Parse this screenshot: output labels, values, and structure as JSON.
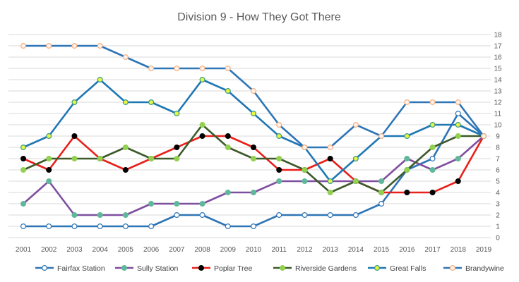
{
  "chart_data": {
    "type": "line",
    "title": "Division 9 - How They Got There",
    "xlabel": "",
    "ylabel": "",
    "x": [
      "2001",
      "2002",
      "2003",
      "2004",
      "2005",
      "2006",
      "2007",
      "2008",
      "2009",
      "2010",
      "2011",
      "2012",
      "2013",
      "2014",
      "2015",
      "2016",
      "2017",
      "2018",
      "2019"
    ],
    "ylim": [
      0,
      18
    ],
    "y_ticks": [
      "0",
      "1",
      "2",
      "3",
      "4",
      "5",
      "6",
      "7",
      "8",
      "9",
      "10",
      "11",
      "12",
      "13",
      "14",
      "15",
      "16",
      "17",
      "18"
    ],
    "y_axis_side": "right",
    "grid": true,
    "legend_position": "bottom",
    "series": [
      {
        "name": "Fairfax Station",
        "line_color": "#2e75b6",
        "marker_fill": "#ffffff",
        "marker_stroke": "#2e75b6",
        "values": [
          1,
          1,
          1,
          1,
          1,
          1,
          2,
          2,
          1,
          1,
          2,
          2,
          2,
          2,
          3,
          6,
          7,
          11,
          9
        ]
      },
      {
        "name": "Sully Station",
        "line_color": "#7f4f9f",
        "marker_fill": "#5fb89a",
        "marker_stroke": "#5fb89a",
        "values": [
          3,
          5,
          2,
          2,
          2,
          3,
          3,
          3,
          4,
          4,
          5,
          5,
          5,
          5,
          5,
          7,
          6,
          7,
          9
        ]
      },
      {
        "name": "Poplar Tree",
        "line_color": "#e8201a",
        "marker_fill": "#000000",
        "marker_stroke": "#000000",
        "values": [
          7,
          6,
          9,
          7,
          6,
          7,
          8,
          9,
          9,
          8,
          6,
          6,
          7,
          5,
          4,
          4,
          4,
          5,
          9
        ]
      },
      {
        "name": "Riverside Gardens",
        "line_color": "#3d5a2a",
        "marker_fill": "#92d050",
        "marker_stroke": "#92d050",
        "values": [
          6,
          7,
          7,
          7,
          8,
          7,
          7,
          10,
          8,
          7,
          7,
          6,
          4,
          5,
          4,
          6,
          8,
          9,
          9
        ]
      },
      {
        "name": "Great Falls",
        "line_color": "#1f77b4",
        "marker_fill": "#e6f542",
        "marker_stroke": "#3a9b8c",
        "values": [
          8,
          9,
          12,
          14,
          12,
          12,
          11,
          14,
          13,
          11,
          9,
          8,
          5,
          7,
          9,
          9,
          10,
          10,
          9
        ]
      },
      {
        "name": "Brandywine",
        "line_color": "#2e75b6",
        "marker_fill": "#fff0e8",
        "marker_stroke": "#f4b183",
        "values": [
          17,
          17,
          17,
          17,
          16,
          15,
          15,
          15,
          15,
          13,
          10,
          8,
          8,
          10,
          9,
          12,
          12,
          12,
          9
        ]
      }
    ]
  }
}
